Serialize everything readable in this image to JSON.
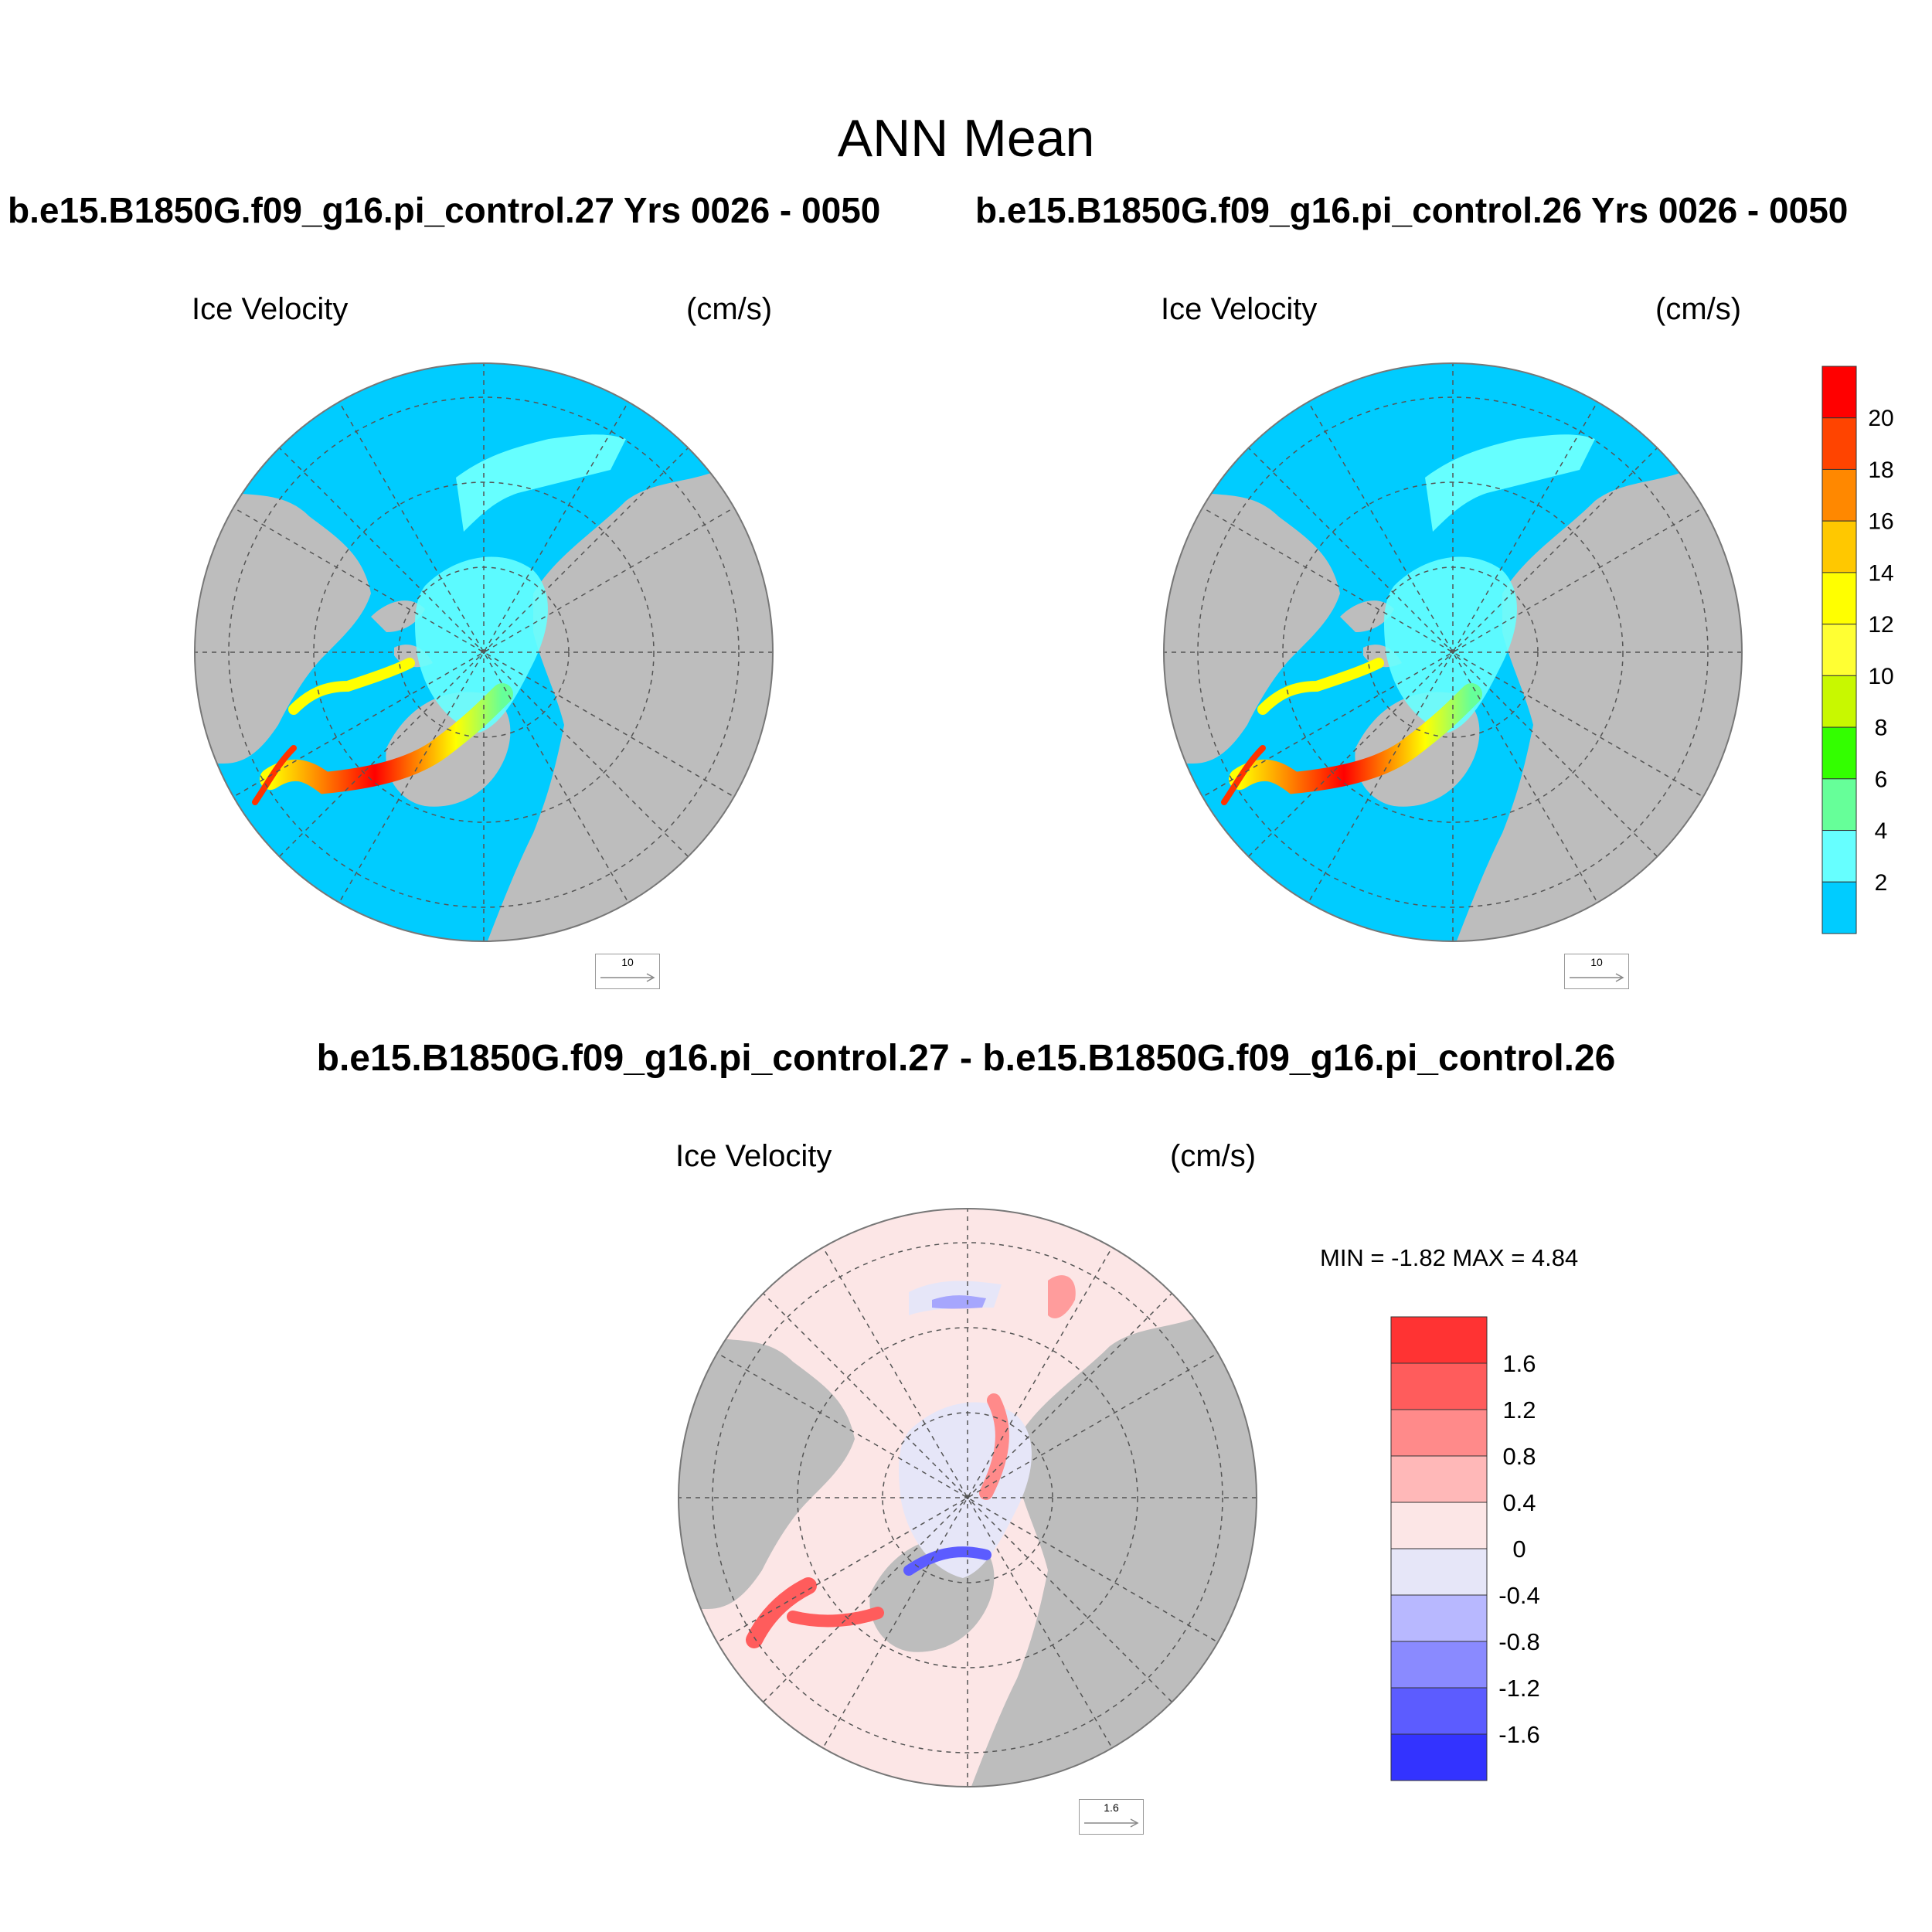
{
  "page_title": "ANN Mean",
  "panels": [
    {
      "case": "b.e15.B1850G.f09_g16.pi_control.27  Yrs 0026 - 0050",
      "left_label": "Ice Velocity",
      "right_label": "(cm/s)",
      "ref_vector": "10"
    },
    {
      "case": "b.e15.B1850G.f09_g16.pi_control.26  Yrs 0026 - 0050",
      "left_label": "Ice Velocity",
      "right_label": "(cm/s)",
      "ref_vector": "10"
    }
  ],
  "diff_panel": {
    "title": "b.e15.B1850G.f09_g16.pi_control.27 - b.e15.B1850G.f09_g16.pi_control.26",
    "left_label": "Ice Velocity",
    "right_label": "(cm/s)",
    "minmax": "MIN =  -1.82 MAX =   4.84",
    "ref_vector": "1.6"
  },
  "colorbar_abs": {
    "labels": [
      "20",
      "18",
      "16",
      "14",
      "12",
      "10",
      "8",
      "6",
      "4",
      "2"
    ],
    "colors": [
      "#ff0000",
      "#ff4400",
      "#ff8800",
      "#ffc800",
      "#ffff00",
      "#ffff33",
      "#c8f800",
      "#33ff00",
      "#66ff99",
      "#66ffff",
      "#00ccff"
    ]
  },
  "colorbar_diff": {
    "labels": [
      "1.6",
      "1.2",
      "0.8",
      "0.4",
      "0",
      "-0.4",
      "-0.8",
      "-1.2",
      "-1.6"
    ],
    "colors": [
      "#ff3333",
      "#ff5c5c",
      "#ff8a8a",
      "#ffb8b8",
      "#fce6e6",
      "#e6e6f8",
      "#b8b8ff",
      "#8a8aff",
      "#5c5cff",
      "#3333ff"
    ]
  },
  "map_colors": {
    "ocean_abs": "#00ccff",
    "land": "#bdbdbd",
    "ocean_diff": "#fce6e6"
  }
}
